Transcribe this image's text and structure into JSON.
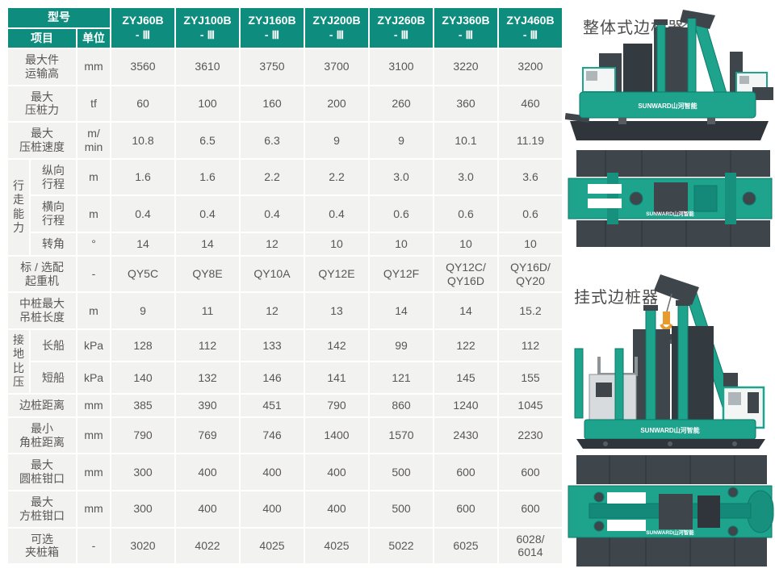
{
  "colors": {
    "header_teal": "#0E8C7D",
    "cell_bg": "#F2F2F1",
    "cell_text": "#595656",
    "machine_teal": "#1EA38D",
    "machine_teal_dark": "#0D7A6C",
    "machine_gray": "#3E454B",
    "machine_gray_dark": "#2F353A",
    "hook_orange": "#E79B2F"
  },
  "table": {
    "header": {
      "model_label": "型号",
      "item_label": "项目",
      "unit_label": "单位",
      "models": [
        {
          "name": "ZYJ60B",
          "suffix": "- Ⅲ"
        },
        {
          "name": "ZYJ100B",
          "suffix": "- Ⅲ"
        },
        {
          "name": "ZYJ160B",
          "suffix": "- Ⅲ"
        },
        {
          "name": "ZYJ200B",
          "suffix": "- Ⅲ"
        },
        {
          "name": "ZYJ260B",
          "suffix": "- Ⅲ"
        },
        {
          "name": "ZYJ360B",
          "suffix": "- Ⅲ"
        },
        {
          "name": "ZYJ460B",
          "suffix": "- Ⅲ"
        }
      ]
    },
    "rows": [
      {
        "label": "最大件\n运输高",
        "unit": "mm",
        "values": [
          "3560",
          "3610",
          "3750",
          "3700",
          "3100",
          "3220",
          "3200"
        ]
      },
      {
        "label": "最大\n压桩力",
        "unit": "tf",
        "values": [
          "60",
          "100",
          "160",
          "200",
          "260",
          "360",
          "460"
        ]
      },
      {
        "label": "最大\n压桩速度",
        "unit": "m/\nmin",
        "values": [
          "10.8",
          "6.5",
          "6.3",
          "9",
          "9",
          "10.1",
          "11.19"
        ]
      },
      {
        "group": {
          "label": "行走能力",
          "span": 3
        },
        "label": "纵向\n行程",
        "unit": "m",
        "values": [
          "1.6",
          "1.6",
          "2.2",
          "2.2",
          "3.0",
          "3.0",
          "3.6"
        ]
      },
      {
        "in_group": true,
        "label": "横向\n行程",
        "unit": "m",
        "values": [
          "0.4",
          "0.4",
          "0.4",
          "0.4",
          "0.6",
          "0.6",
          "0.6"
        ]
      },
      {
        "in_group": true,
        "label": "转角",
        "unit": "°",
        "values": [
          "14",
          "14",
          "12",
          "10",
          "10",
          "10",
          "10"
        ]
      },
      {
        "label": "标 / 选配\n起重机",
        "unit": "-",
        "values": [
          "QY5C",
          "QY8E",
          "QY10A",
          "QY12E",
          "QY12F",
          "QY12C/\nQY16D",
          "QY16D/\nQY20"
        ]
      },
      {
        "label": "中桩最大\n吊桩长度",
        "unit": "m",
        "values": [
          "9",
          "11",
          "12",
          "13",
          "14",
          "14",
          "15.2"
        ]
      },
      {
        "group": {
          "label": "接地比压",
          "span": 2
        },
        "label": "长船",
        "unit": "kPa",
        "values": [
          "128",
          "112",
          "133",
          "142",
          "99",
          "122",
          "112"
        ]
      },
      {
        "in_group": true,
        "label": "短船",
        "unit": "kPa",
        "values": [
          "140",
          "132",
          "146",
          "141",
          "121",
          "145",
          "155"
        ]
      },
      {
        "label": "边桩距离",
        "unit": "mm",
        "values": [
          "385",
          "390",
          "451",
          "790",
          "860",
          "1240",
          "1045"
        ]
      },
      {
        "label": "最小\n角桩距离",
        "unit": "mm",
        "values": [
          "790",
          "769",
          "746",
          "1400",
          "1570",
          "2430",
          "2230"
        ]
      },
      {
        "label": "最大\n圆桩钳口",
        "unit": "mm",
        "values": [
          "300",
          "400",
          "400",
          "400",
          "500",
          "600",
          "600"
        ]
      },
      {
        "label": "最大\n方桩钳口",
        "unit": "mm",
        "values": [
          "300",
          "400",
          "400",
          "400",
          "500",
          "600",
          "600"
        ]
      },
      {
        "label": "可选\n夹桩箱",
        "unit": "-",
        "values": [
          "3020",
          "4022",
          "4025",
          "4025",
          "5022",
          "6025",
          "6028/\n6014"
        ]
      }
    ]
  },
  "panel": {
    "label_integral": "整体式边桩器",
    "label_hanging": "挂式边桩器",
    "brand": "SUNWARD山河智能"
  }
}
